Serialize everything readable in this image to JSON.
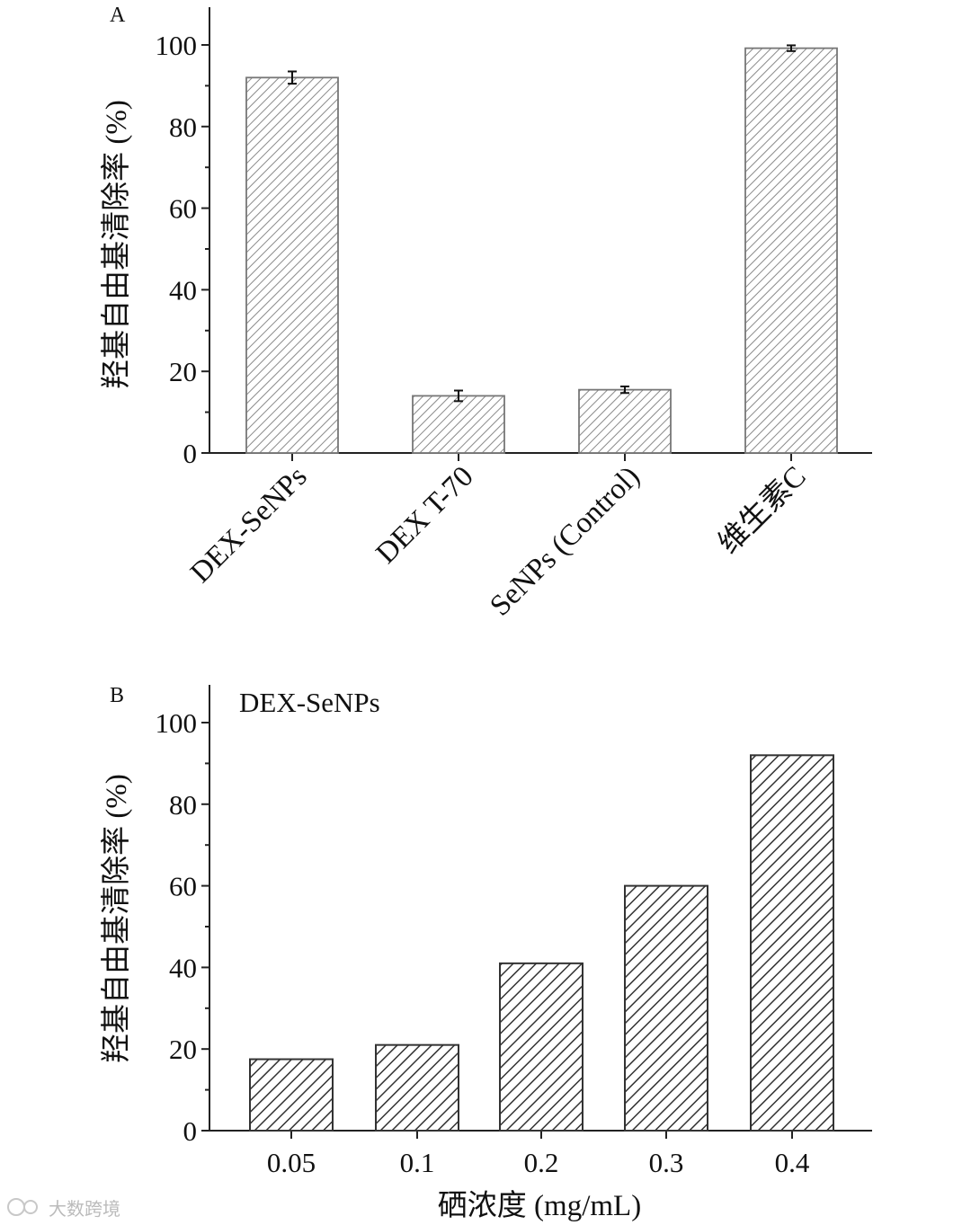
{
  "watermark": "大数跨境",
  "chart_data": [
    {
      "panel": "A",
      "type": "bar",
      "categories": [
        "DEX-SeNPs",
        "DEX T-70",
        "SeNPs (Control)",
        "维生素C"
      ],
      "values": [
        92,
        14,
        15.5,
        99.2
      ],
      "errors": [
        1.5,
        1.3,
        0.8,
        0.7
      ],
      "ylabel": "羟基自由基清除率 (%)",
      "xlabel": "",
      "ylim": [
        0,
        100
      ],
      "yticks": [
        0,
        20,
        40,
        60,
        80,
        100
      ],
      "grid": false,
      "bar_pattern": "light-hatched",
      "colors": {
        "hatch": "#8a8a8a",
        "fill": "#ffffff"
      }
    },
    {
      "panel": "B",
      "type": "bar",
      "annotation": "DEX-SeNPs",
      "categories": [
        "0.05",
        "0.1",
        "0.2",
        "0.3",
        "0.4"
      ],
      "values": [
        17.5,
        21,
        41,
        60,
        92
      ],
      "ylabel": "羟基自由基清除率 (%)",
      "xlabel": "硒浓度 (mg/mL)",
      "ylim": [
        0,
        100
      ],
      "yticks": [
        0,
        20,
        40,
        60,
        80,
        100
      ],
      "grid": false,
      "bar_pattern": "dark-hatched",
      "colors": {
        "hatch": "#333333",
        "fill": "#ffffff"
      }
    }
  ]
}
